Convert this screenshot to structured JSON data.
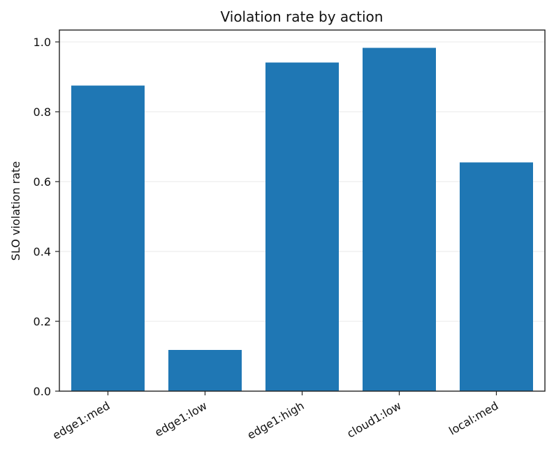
{
  "chart_data": {
    "type": "bar",
    "title": "Violation rate by action",
    "xlabel": "",
    "ylabel": "SLO violation rate",
    "categories": [
      "edge1:med",
      "edge1:low",
      "edge1:high",
      "cloud1:low",
      "local:med"
    ],
    "values": [
      0.875,
      0.118,
      0.941,
      0.983,
      0.655
    ],
    "yticks": [
      "0.0",
      "0.2",
      "0.4",
      "0.6",
      "0.8",
      "1.0"
    ],
    "ylim": [
      0,
      1.034
    ],
    "grid": "y",
    "bar_color": "#1f77b4"
  }
}
